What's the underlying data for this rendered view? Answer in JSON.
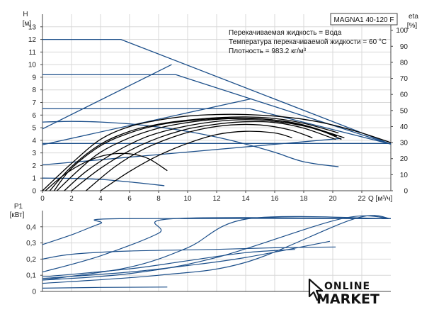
{
  "model_label": "MAGNA1 40-120 F",
  "conditions": [
    "Перекачиваемая жидкость = Вода",
    "Температура перекачиваемой жидкости = 60 °C",
    "Плотность = 983.2 кг/м³"
  ],
  "brand_logo": {
    "line1": "ONLINE",
    "line2": "MARKET",
    "icon": "cursor-arrow-icon"
  },
  "colors": {
    "curve": "#1c4f8a",
    "efficiency": "#000000",
    "grid": "#d8d8d8",
    "text": "#222222"
  },
  "chart_data": [
    {
      "type": "line",
      "title": "",
      "ylabel_top": "H",
      "ylabel_unit": "[м]",
      "y2label_top": "eta",
      "y2label_unit": "[%]",
      "xlabel": "Q [м³/ч]",
      "xlim": [
        0,
        24
      ],
      "ylim": [
        0,
        14
      ],
      "y2lim": [
        0,
        110
      ],
      "x_ticks": [
        0,
        2,
        4,
        6,
        8,
        10,
        12,
        14,
        16,
        18,
        20,
        22
      ],
      "y_ticks": [
        0,
        1,
        2,
        3,
        4,
        5,
        6,
        7,
        8,
        9,
        10,
        11,
        12,
        13
      ],
      "y2_ticks": [
        0,
        10,
        20,
        30,
        40,
        50,
        60,
        70,
        80,
        90,
        100
      ],
      "grid": true,
      "series": [
        {
          "kind": "head",
          "x": [
            0,
            5.4,
            24
          ],
          "y": [
            12,
            12,
            3.7
          ]
        },
        {
          "kind": "head",
          "x": [
            0,
            9.2,
            24
          ],
          "y": [
            9.2,
            9.2,
            3.7
          ]
        },
        {
          "kind": "head",
          "x": [
            0,
            14.3,
            24
          ],
          "y": [
            6.5,
            6.5,
            3.7
          ]
        },
        {
          "kind": "head",
          "x": [
            0,
            24
          ],
          "y": [
            3.75,
            3.75
          ]
        },
        {
          "kind": "head",
          "x": [
            0,
            2,
            4,
            6,
            8,
            10,
            12,
            14,
            16,
            18,
            20.4
          ],
          "y": [
            5.45,
            5.5,
            5.45,
            5.3,
            5.05,
            4.7,
            4.25,
            3.7,
            3.05,
            2.3,
            1.9
          ]
        },
        {
          "kind": "head",
          "x": [
            0,
            2,
            4,
            6,
            8.4
          ],
          "y": [
            1,
            0.98,
            0.9,
            0.7,
            0.4
          ]
        },
        {
          "kind": "control",
          "x": [
            0,
            8.9
          ],
          "y": [
            4.9,
            10
          ]
        },
        {
          "kind": "control",
          "x": [
            0,
            14.4
          ],
          "y": [
            3.65,
            7.3
          ]
        },
        {
          "kind": "control",
          "x": [
            0,
            20.6
          ],
          "y": [
            2.05,
            4.15
          ]
        },
        {
          "kind": "efficiency",
          "x": [
            0,
            2,
            4,
            6,
            8,
            10,
            12,
            14,
            16,
            18,
            20,
            22,
            24
          ],
          "y": [
            0,
            17,
            32,
            40,
            44,
            46.5,
            47.5,
            47.5,
            46.5,
            44.5,
            41,
            36,
            30
          ]
        },
        {
          "kind": "efficiency",
          "x": [
            0.5,
            2,
            4,
            6,
            8,
            10,
            12,
            14,
            16,
            18,
            20.4
          ],
          "y": [
            0,
            15,
            29,
            37,
            41.5,
            44,
            45.5,
            46,
            45,
            42,
            36
          ]
        },
        {
          "kind": "efficiency",
          "x": [
            1,
            2.5,
            4,
            6,
            8,
            10,
            12,
            14,
            16,
            18,
            20.8
          ],
          "y": [
            0,
            13,
            24,
            33,
            39,
            42.5,
            44.5,
            45,
            44,
            41,
            33
          ]
        },
        {
          "kind": "efficiency",
          "x": [
            1.5,
            3,
            5,
            7,
            9,
            11,
            13,
            15,
            17,
            19,
            20.6
          ],
          "y": [
            0,
            12,
            24,
            33,
            38.5,
            42,
            44,
            44,
            42,
            38,
            32
          ]
        },
        {
          "kind": "efficiency",
          "x": [
            2,
            4,
            6,
            8,
            10,
            12,
            14,
            16,
            18,
            20.2
          ],
          "y": [
            0,
            14,
            25,
            33,
            38.5,
            41.5,
            43,
            42.5,
            39,
            32
          ]
        },
        {
          "kind": "efficiency",
          "x": [
            3,
            5,
            7,
            9,
            11,
            13,
            15,
            17,
            18.6
          ],
          "y": [
            0,
            15,
            26,
            33.5,
            38.5,
            41,
            41,
            38,
            33
          ]
        },
        {
          "kind": "efficiency",
          "x": [
            4,
            6,
            8,
            10,
            12,
            14,
            16,
            17.2
          ],
          "y": [
            0,
            12,
            22,
            29.5,
            35,
            37,
            36,
            33
          ]
        },
        {
          "kind": "efficiency",
          "x": [
            0.8,
            2,
            4,
            6,
            8,
            10,
            12,
            14,
            16,
            18,
            20.3
          ],
          "y": [
            0,
            14,
            28,
            36,
            41,
            43.5,
            45,
            45.3,
            44,
            40.5,
            34
          ]
        },
        {
          "kind": "efficiency",
          "x": [
            0.2,
            1.5,
            3,
            4.5,
            6,
            7.3,
            8.6
          ],
          "y": [
            0,
            10,
            18,
            22.5,
            23,
            20,
            12.5
          ]
        }
      ]
    },
    {
      "type": "line",
      "title": "",
      "ylabel_top": "P1",
      "ylabel_unit": "[кВт]",
      "xlim": [
        0,
        24
      ],
      "ylim": [
        0,
        0.5
      ],
      "x_ticks": [
        0,
        2,
        4,
        6,
        8,
        10,
        12,
        14,
        16,
        18,
        20,
        22
      ],
      "y_ticks": [
        0,
        0.1,
        0.2,
        0.3,
        0.4
      ],
      "y_tick_labels": [
        "0",
        "0,1",
        "0,2",
        "0,3",
        "0,4"
      ],
      "grid": true,
      "series": [
        {
          "kind": "power",
          "x": [
            0,
            2,
            4,
            5.3,
            24
          ],
          "y": [
            0.29,
            0.35,
            0.42,
            0.45,
            0.45
          ]
        },
        {
          "kind": "power",
          "x": [
            0,
            4,
            8,
            9,
            24
          ],
          "y": [
            0.12,
            0.22,
            0.36,
            0.45,
            0.45
          ]
        },
        {
          "kind": "power",
          "x": [
            0,
            6,
            10,
            14.2,
            24
          ],
          "y": [
            0.07,
            0.15,
            0.27,
            0.45,
            0.45
          ]
        },
        {
          "kind": "power",
          "x": [
            0,
            6,
            12,
            20.6,
            24
          ],
          "y": [
            0.07,
            0.11,
            0.21,
            0.45,
            0.45
          ]
        },
        {
          "kind": "power",
          "x": [
            0,
            8,
            14,
            21.5,
            24
          ],
          "y": [
            0.05,
            0.1,
            0.18,
            0.45,
            0.45
          ]
        },
        {
          "kind": "power",
          "x": [
            0,
            2,
            6,
            12,
            16,
            20.2
          ],
          "y": [
            0.2,
            0.23,
            0.25,
            0.26,
            0.27,
            0.275
          ]
        },
        {
          "kind": "power",
          "x": [
            0,
            6,
            10,
            14,
            17.4
          ],
          "y": [
            0.09,
            0.14,
            0.19,
            0.24,
            0.26
          ]
        },
        {
          "kind": "power",
          "x": [
            0,
            6,
            10,
            14,
            19.8
          ],
          "y": [
            0.08,
            0.12,
            0.16,
            0.21,
            0.31
          ]
        },
        {
          "kind": "power",
          "x": [
            0,
            4,
            8.6
          ],
          "y": [
            0.02,
            0.025,
            0.027
          ]
        }
      ]
    }
  ]
}
